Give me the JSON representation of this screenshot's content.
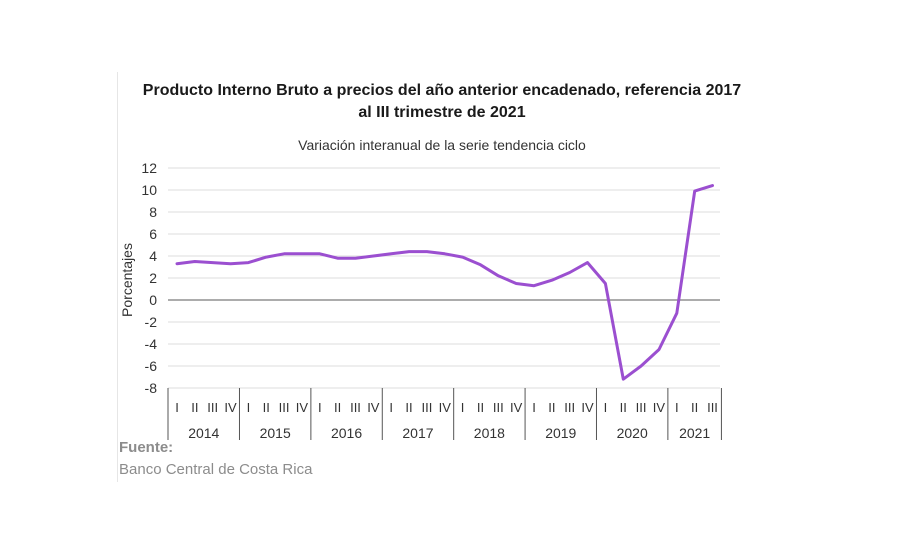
{
  "chart_data": {
    "type": "line",
    "title": "Producto Interno Bruto a precios del año anterior encadenado, referencia 2017",
    "title_line2": "al III trimestre de 2021",
    "subtitle": "Variación interanual de la serie tendencia ciclo",
    "ylabel": "Porcentajes",
    "xlabel": "",
    "ylim": [
      -8,
      12
    ],
    "yticks": [
      -8,
      -6,
      -4,
      -2,
      0,
      2,
      4,
      6,
      8,
      10,
      12
    ],
    "grid": true,
    "legend": "none",
    "color": "#9b4fd0",
    "years": [
      {
        "label": "2014",
        "quarters": [
          "I",
          "II",
          "III",
          "IV"
        ]
      },
      {
        "label": "2015",
        "quarters": [
          "I",
          "II",
          "III",
          "IV"
        ]
      },
      {
        "label": "2016",
        "quarters": [
          "I",
          "II",
          "III",
          "IV"
        ]
      },
      {
        "label": "2017",
        "quarters": [
          "I",
          "II",
          "III",
          "IV"
        ]
      },
      {
        "label": "2018",
        "quarters": [
          "I",
          "II",
          "III",
          "IV"
        ]
      },
      {
        "label": "2019",
        "quarters": [
          "I",
          "II",
          "III",
          "IV"
        ]
      },
      {
        "label": "2020",
        "quarters": [
          "I",
          "II",
          "III",
          "IV"
        ]
      },
      {
        "label": "2021",
        "quarters": [
          "I",
          "II",
          "III"
        ]
      }
    ],
    "series": [
      {
        "values": [
          3.3,
          3.5,
          3.4,
          3.3,
          3.4,
          3.9,
          4.2,
          4.2,
          4.2,
          3.8,
          3.8,
          4.0,
          4.2,
          4.4,
          4.4,
          4.2,
          3.9,
          3.2,
          2.2,
          1.5,
          1.3,
          1.8,
          2.5,
          3.4,
          1.5,
          -7.2,
          -6.0,
          -4.5,
          -1.2,
          9.9,
          10.4
        ]
      }
    ]
  },
  "source": {
    "label": "Fuente:",
    "text": "Banco Central de Costa Rica"
  }
}
